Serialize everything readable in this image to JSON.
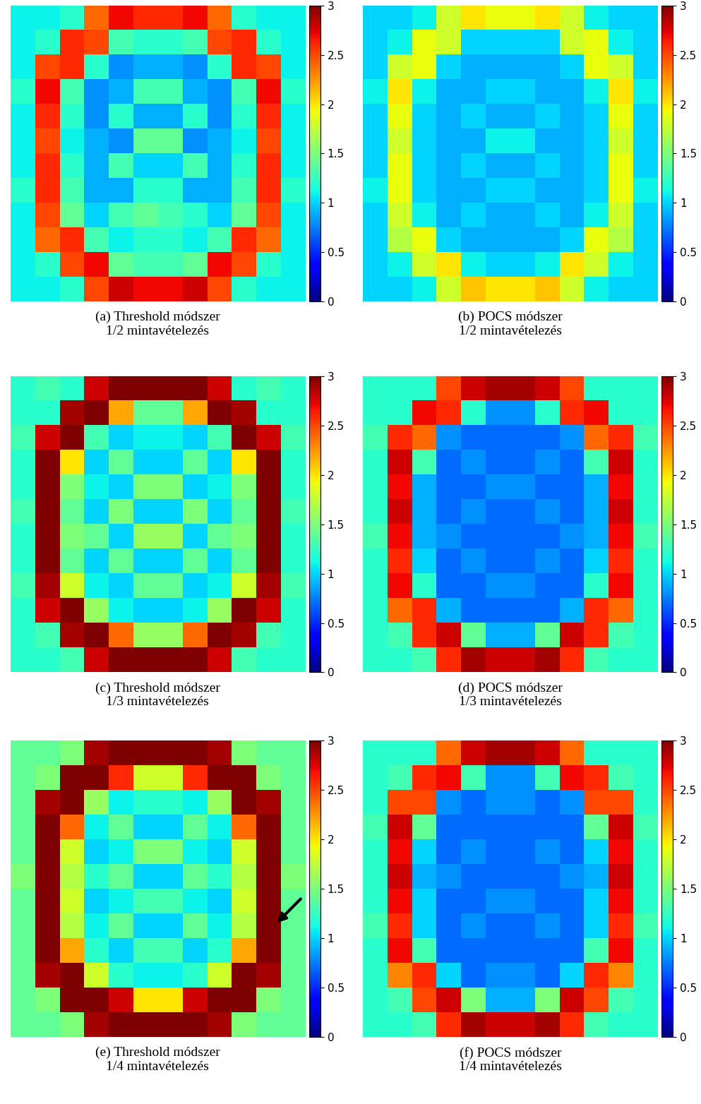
{
  "chart_data": [
    {
      "type": "heatmap",
      "caption": [
        "(a) Threshold módszer",
        "1/2 mintavételezés"
      ],
      "tick_labels": false,
      "colorbar_range": [
        0,
        3
      ],
      "colorbar_ticks": [
        0,
        0.5,
        1,
        1.5,
        2,
        2.5,
        3
      ],
      "cells": [
        [
          1.1,
          1.1,
          1.2,
          2.4,
          2.7,
          2.6,
          2.6,
          2.7,
          2.4,
          1.2,
          1.1,
          1.1
        ],
        [
          1.1,
          1.2,
          2.6,
          2.5,
          1.3,
          1.2,
          1.2,
          1.3,
          2.5,
          2.6,
          1.2,
          1.1
        ],
        [
          1.1,
          2.5,
          2.6,
          1.2,
          0.8,
          0.9,
          0.9,
          0.8,
          1.2,
          2.6,
          2.5,
          1.1
        ],
        [
          1.2,
          2.7,
          1.3,
          0.8,
          0.9,
          1.3,
          1.3,
          0.9,
          0.8,
          1.3,
          2.7,
          1.2
        ],
        [
          1.1,
          2.6,
          1.2,
          0.8,
          1.2,
          0.9,
          0.9,
          1.2,
          0.8,
          1.2,
          2.6,
          1.1
        ],
        [
          1.1,
          2.5,
          1.1,
          0.9,
          0.8,
          1.4,
          1.4,
          0.8,
          0.9,
          1.1,
          2.5,
          1.1
        ],
        [
          1.1,
          2.6,
          1.2,
          0.9,
          1.3,
          1.0,
          1.0,
          1.3,
          0.9,
          1.2,
          2.6,
          1.1
        ],
        [
          1.2,
          2.6,
          1.3,
          0.9,
          0.9,
          1.2,
          1.2,
          0.9,
          0.9,
          1.3,
          2.6,
          1.2
        ],
        [
          1.1,
          2.5,
          1.4,
          1.0,
          1.3,
          1.4,
          1.3,
          1.2,
          1.0,
          1.4,
          2.5,
          1.1
        ],
        [
          1.1,
          2.4,
          2.6,
          1.3,
          1.1,
          1.2,
          1.2,
          1.1,
          1.3,
          2.6,
          2.4,
          1.1
        ],
        [
          1.1,
          1.2,
          2.5,
          2.7,
          1.4,
          1.3,
          1.3,
          1.4,
          2.7,
          2.5,
          1.2,
          1.1
        ],
        [
          1.1,
          1.1,
          1.2,
          2.5,
          2.8,
          2.7,
          2.7,
          2.8,
          2.5,
          1.2,
          1.1,
          1.1
        ]
      ]
    },
    {
      "type": "heatmap",
      "caption": [
        "(b) POCS módszer",
        "1/2 mintavételezés"
      ],
      "tick_labels": false,
      "colorbar_range": [
        0,
        3
      ],
      "colorbar_ticks": [
        0,
        0.5,
        1,
        1.5,
        2,
        2.5,
        3
      ],
      "cells": [
        [
          1.0,
          1.0,
          1.1,
          1.8,
          2.0,
          1.9,
          1.9,
          2.0,
          1.8,
          1.1,
          1.0,
          1.0
        ],
        [
          1.0,
          1.1,
          1.9,
          1.8,
          1.0,
          1.0,
          1.0,
          1.0,
          1.8,
          1.9,
          1.1,
          1.0
        ],
        [
          1.0,
          1.8,
          1.9,
          1.0,
          0.9,
          0.9,
          0.9,
          0.9,
          1.0,
          1.9,
          1.8,
          1.0
        ],
        [
          1.1,
          2.0,
          1.1,
          0.9,
          0.9,
          1.0,
          1.0,
          0.9,
          0.9,
          1.1,
          2.0,
          1.1
        ],
        [
          1.0,
          1.9,
          1.0,
          0.9,
          1.0,
          0.9,
          0.9,
          1.0,
          0.9,
          1.0,
          1.9,
          1.0
        ],
        [
          1.0,
          1.8,
          1.0,
          0.9,
          0.9,
          1.1,
          1.1,
          0.9,
          0.9,
          1.0,
          1.8,
          1.0
        ],
        [
          1.0,
          1.9,
          1.0,
          0.9,
          1.0,
          0.9,
          0.9,
          1.0,
          0.9,
          1.0,
          1.9,
          1.0
        ],
        [
          1.1,
          1.9,
          1.0,
          0.9,
          0.9,
          1.0,
          1.0,
          0.9,
          0.9,
          1.0,
          1.9,
          1.1
        ],
        [
          1.0,
          1.8,
          1.1,
          0.9,
          1.0,
          0.9,
          0.9,
          1.0,
          0.9,
          1.1,
          1.8,
          1.0
        ],
        [
          1.0,
          1.7,
          1.9,
          1.0,
          0.9,
          0.9,
          0.9,
          0.9,
          1.0,
          1.9,
          1.7,
          1.0
        ],
        [
          1.0,
          1.1,
          1.8,
          2.0,
          1.1,
          1.0,
          1.0,
          1.1,
          2.0,
          1.8,
          1.1,
          1.0
        ],
        [
          1.0,
          1.0,
          1.1,
          1.8,
          2.1,
          2.0,
          2.0,
          2.1,
          1.8,
          1.1,
          1.0,
          1.0
        ]
      ]
    },
    {
      "type": "heatmap",
      "caption": [
        "(c) Threshold módszer",
        "1/3 mintavételezés"
      ],
      "tick_labels": false,
      "colorbar_range": [
        0,
        3
      ],
      "colorbar_ticks": [
        0,
        0.5,
        1,
        1.5,
        2,
        2.5,
        3
      ],
      "cells": [
        [
          1.2,
          1.3,
          1.2,
          2.8,
          3.0,
          3.0,
          3.0,
          3.0,
          2.8,
          1.2,
          1.3,
          1.2
        ],
        [
          1.2,
          1.2,
          2.9,
          3.0,
          2.2,
          1.4,
          1.4,
          2.2,
          3.0,
          2.9,
          1.2,
          1.2
        ],
        [
          1.3,
          2.8,
          3.0,
          1.3,
          1.0,
          1.1,
          1.1,
          1.0,
          1.3,
          3.0,
          2.8,
          1.3
        ],
        [
          1.2,
          3.0,
          2.0,
          1.0,
          1.4,
          1.0,
          1.0,
          1.4,
          1.0,
          2.0,
          3.0,
          1.2
        ],
        [
          1.2,
          3.0,
          1.5,
          1.1,
          1.0,
          1.5,
          1.5,
          1.0,
          1.1,
          1.5,
          3.0,
          1.2
        ],
        [
          1.3,
          3.0,
          1.4,
          1.0,
          1.5,
          1.0,
          1.0,
          1.5,
          1.0,
          1.4,
          3.0,
          1.3
        ],
        [
          1.2,
          3.0,
          1.5,
          1.4,
          1.0,
          1.6,
          1.6,
          1.0,
          1.4,
          1.5,
          3.0,
          1.2
        ],
        [
          1.2,
          3.0,
          1.4,
          1.0,
          1.4,
          1.0,
          1.0,
          1.4,
          1.0,
          1.4,
          3.0,
          1.2
        ],
        [
          1.3,
          2.9,
          1.8,
          1.1,
          1.0,
          1.4,
          1.4,
          1.0,
          1.1,
          1.8,
          2.9,
          1.3
        ],
        [
          1.2,
          2.8,
          3.0,
          1.6,
          1.1,
          1.0,
          1.0,
          1.1,
          1.6,
          3.0,
          2.8,
          1.2
        ],
        [
          1.2,
          1.3,
          2.9,
          3.0,
          2.4,
          1.6,
          1.6,
          2.4,
          3.0,
          2.9,
          1.3,
          1.2
        ],
        [
          1.2,
          1.2,
          1.3,
          2.8,
          3.0,
          3.0,
          3.0,
          3.0,
          2.8,
          1.3,
          1.2,
          1.2
        ]
      ]
    },
    {
      "type": "heatmap",
      "caption": [
        "(d) POCS módszer",
        "1/3 mintavételezés"
      ],
      "tick_labels": false,
      "colorbar_range": [
        0,
        3
      ],
      "colorbar_ticks": [
        0,
        0.5,
        1,
        1.5,
        2,
        2.5,
        3
      ],
      "cells": [
        [
          1.2,
          1.2,
          1.2,
          2.5,
          2.8,
          2.9,
          2.9,
          2.8,
          2.5,
          1.2,
          1.2,
          1.2
        ],
        [
          1.2,
          1.2,
          2.7,
          2.6,
          1.2,
          0.8,
          0.8,
          1.2,
          2.6,
          2.7,
          1.2,
          1.2
        ],
        [
          1.3,
          2.6,
          2.4,
          0.8,
          0.7,
          0.7,
          0.7,
          0.7,
          0.8,
          2.4,
          2.6,
          1.3
        ],
        [
          1.2,
          2.8,
          1.3,
          0.7,
          0.8,
          0.7,
          0.7,
          0.8,
          0.7,
          1.3,
          2.8,
          1.2
        ],
        [
          1.2,
          2.7,
          0.9,
          0.7,
          0.7,
          0.8,
          0.8,
          0.7,
          0.7,
          0.9,
          2.7,
          1.2
        ],
        [
          1.2,
          2.8,
          0.9,
          0.7,
          0.8,
          0.7,
          0.7,
          0.8,
          0.7,
          0.9,
          2.8,
          1.2
        ],
        [
          1.3,
          2.7,
          0.9,
          0.8,
          0.7,
          0.7,
          0.7,
          0.7,
          0.8,
          0.9,
          2.7,
          1.3
        ],
        [
          1.2,
          2.6,
          1.0,
          0.7,
          0.8,
          0.7,
          0.7,
          0.8,
          0.7,
          1.0,
          2.6,
          1.2
        ],
        [
          1.2,
          2.7,
          1.2,
          0.7,
          0.7,
          0.8,
          0.8,
          0.7,
          0.7,
          1.2,
          2.7,
          1.2
        ],
        [
          1.2,
          2.4,
          2.6,
          0.9,
          0.7,
          0.7,
          0.7,
          0.7,
          0.9,
          2.6,
          2.4,
          1.2
        ],
        [
          1.2,
          1.3,
          2.6,
          2.8,
          1.4,
          0.9,
          0.9,
          1.4,
          2.8,
          2.6,
          1.3,
          1.2
        ],
        [
          1.2,
          1.2,
          1.3,
          2.6,
          2.9,
          2.8,
          2.8,
          2.9,
          2.6,
          1.3,
          1.2,
          1.2
        ]
      ]
    },
    {
      "type": "heatmap",
      "caption": [
        "(e) Threshold módszer",
        "1/4 mintavételezés"
      ],
      "tick_labels": false,
      "colorbar_range": [
        0,
        3
      ],
      "colorbar_ticks": [
        0,
        0.5,
        1,
        1.5,
        2,
        2.5,
        3
      ],
      "cells": [
        [
          1.4,
          1.4,
          1.5,
          2.9,
          3.0,
          3.0,
          3.0,
          3.0,
          2.9,
          1.5,
          1.4,
          1.4
        ],
        [
          1.4,
          1.5,
          3.0,
          3.0,
          2.6,
          1.8,
          1.8,
          2.6,
          3.0,
          3.0,
          1.5,
          1.4
        ],
        [
          1.4,
          2.9,
          3.0,
          1.6,
          1.1,
          1.2,
          1.2,
          1.1,
          1.6,
          3.0,
          2.9,
          1.4
        ],
        [
          1.4,
          3.0,
          2.4,
          1.1,
          1.4,
          1.0,
          1.0,
          1.4,
          1.1,
          2.4,
          3.0,
          1.4
        ],
        [
          1.4,
          3.0,
          1.8,
          1.0,
          1.1,
          1.5,
          1.5,
          1.1,
          1.0,
          1.8,
          3.0,
          1.4
        ],
        [
          1.5,
          3.0,
          1.7,
          1.2,
          1.4,
          1.0,
          1.0,
          1.4,
          1.2,
          1.7,
          3.0,
          1.5
        ],
        [
          1.4,
          3.0,
          1.8,
          1.0,
          1.1,
          1.3,
          1.3,
          1.1,
          1.0,
          1.8,
          3.0,
          1.4
        ],
        [
          1.4,
          3.0,
          1.7,
          1.1,
          1.4,
          1.0,
          1.0,
          1.4,
          1.1,
          1.7,
          3.0,
          1.4
        ],
        [
          1.4,
          3.0,
          2.2,
          1.2,
          1.0,
          1.3,
          1.3,
          1.0,
          1.2,
          2.2,
          3.0,
          1.4
        ],
        [
          1.4,
          2.9,
          3.0,
          1.8,
          1.2,
          1.1,
          1.1,
          1.2,
          1.8,
          3.0,
          2.9,
          1.4
        ],
        [
          1.4,
          1.5,
          3.0,
          3.0,
          2.8,
          2.0,
          2.0,
          2.8,
          3.0,
          3.0,
          1.5,
          1.4
        ],
        [
          1.4,
          1.4,
          1.5,
          2.9,
          3.0,
          3.0,
          3.0,
          3.0,
          2.9,
          1.5,
          1.4,
          1.4
        ]
      ]
    },
    {
      "type": "heatmap",
      "caption": [
        "(f) POCS módszer",
        "1/4 mintavételezés"
      ],
      "tick_labels": false,
      "colorbar_range": [
        0,
        3
      ],
      "colorbar_ticks": [
        0,
        0.5,
        1,
        1.5,
        2,
        2.5,
        3
      ],
      "cells": [
        [
          1.2,
          1.2,
          1.2,
          2.4,
          2.8,
          2.9,
          2.9,
          2.8,
          2.4,
          1.2,
          1.2,
          1.2
        ],
        [
          1.2,
          1.3,
          2.6,
          2.7,
          1.3,
          0.8,
          0.8,
          1.3,
          2.7,
          2.6,
          1.3,
          1.2
        ],
        [
          1.2,
          2.5,
          2.5,
          0.8,
          0.7,
          0.8,
          0.8,
          0.7,
          0.8,
          2.5,
          2.5,
          1.2
        ],
        [
          1.3,
          2.8,
          1.4,
          0.7,
          0.7,
          0.7,
          0.7,
          0.7,
          0.7,
          1.4,
          2.8,
          1.3
        ],
        [
          1.2,
          2.7,
          1.0,
          0.7,
          0.8,
          0.7,
          0.7,
          0.8,
          0.7,
          1.0,
          2.7,
          1.2
        ],
        [
          1.2,
          2.8,
          0.9,
          0.8,
          0.7,
          0.7,
          0.7,
          0.7,
          0.8,
          0.9,
          2.8,
          1.2
        ],
        [
          1.2,
          2.7,
          1.0,
          0.7,
          0.7,
          0.8,
          0.8,
          0.7,
          0.7,
          1.0,
          2.7,
          1.2
        ],
        [
          1.3,
          2.6,
          1.0,
          0.7,
          0.8,
          0.7,
          0.7,
          0.8,
          0.7,
          1.0,
          2.6,
          1.3
        ],
        [
          1.2,
          2.7,
          1.3,
          0.7,
          0.7,
          0.7,
          0.7,
          0.7,
          0.7,
          1.3,
          2.7,
          1.2
        ],
        [
          1.2,
          2.3,
          2.6,
          1.0,
          0.7,
          0.8,
          0.8,
          0.7,
          1.0,
          2.6,
          2.3,
          1.2
        ],
        [
          1.2,
          1.3,
          2.5,
          2.8,
          1.5,
          0.9,
          0.9,
          1.5,
          2.8,
          2.5,
          1.3,
          1.2
        ],
        [
          1.2,
          1.2,
          1.3,
          2.6,
          2.9,
          2.8,
          2.8,
          2.9,
          2.6,
          1.3,
          1.2,
          1.2
        ]
      ]
    }
  ]
}
